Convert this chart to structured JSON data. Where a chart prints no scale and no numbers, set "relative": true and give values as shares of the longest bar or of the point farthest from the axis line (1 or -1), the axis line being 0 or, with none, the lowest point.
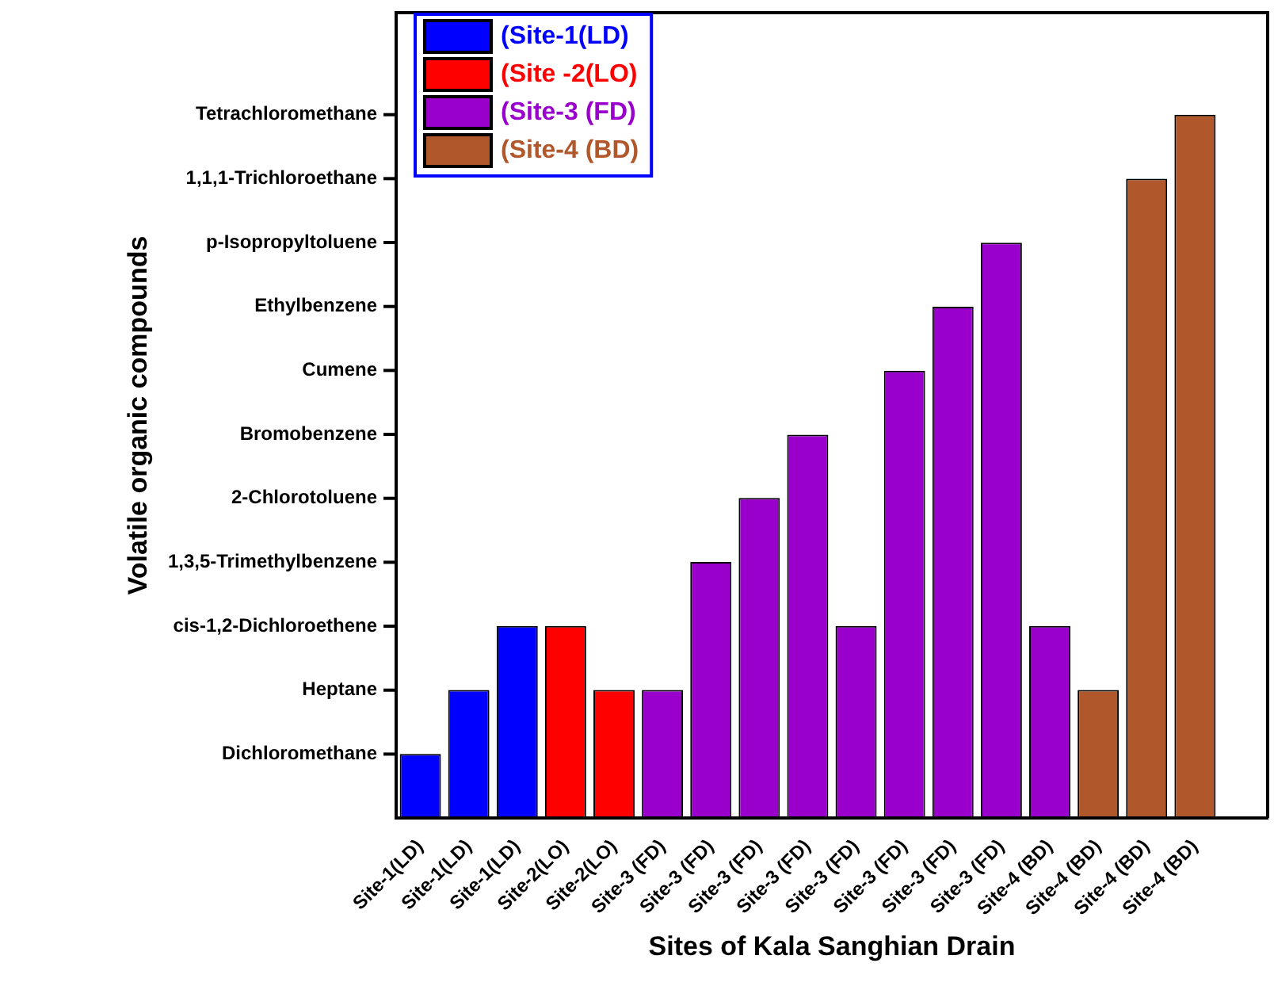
{
  "chart_data": {
    "type": "bar",
    "xlabel": "Sites of Kala Sanghian Drain",
    "relative": true,
    "categories": [
      "Site-1(LD)",
      "Site-1(LD)",
      "Site-1(LD)",
      "Site-2(LO)",
      "Site-2(LO)",
      "Site-3 (FD)",
      "Site-3 (FD)",
      "Site-3 (FD)",
      "Site-3 (FD)",
      "Site-3 (FD)",
      "Site-3 (FD)",
      "Site-3 (FD)",
      "Site-3 (FD)",
      "Site-4 (BD)",
      "Site-4 (BD)",
      "Site-4 (BD)",
      "Site-4 (BD)",
      null
    ],
    "annotations": [
      "Volatile organic compounds",
      "Tetrachloromethane",
      "1,1,1-Trichloroethane",
      "p-Isopropyltoluene",
      "Ethylbenzene",
      "Cumene",
      "Bromobenzene",
      "2-Chlorotoluene",
      "1,3,5-Trimethylbenzene",
      "cis-1,2-Dichloroethene",
      "Heptane",
      "Dichloromethane"
    ],
    "series": [
      {
        "name": "(Site-1(LD)",
        "color": "#0000ff",
        "values": [
          0.091,
          0.182,
          0.273,
          null,
          null,
          null,
          null,
          null,
          null,
          null,
          null,
          null,
          null,
          null,
          null,
          null,
          null,
          null
        ]
      },
      {
        "name": "(Site -2(LO)",
        "color": "#ff0000",
        "values": [
          null,
          null,
          null,
          0.273,
          0.182,
          null,
          null,
          null,
          null,
          null,
          null,
          null,
          null,
          null,
          null,
          null,
          null,
          null
        ]
      },
      {
        "name": "(Site-3 (FD)",
        "color": "#9900cc",
        "values": [
          null,
          null,
          null,
          null,
          null,
          0.182,
          0.364,
          0.455,
          0.545,
          0.273,
          0.636,
          0.727,
          0.818,
          0.273,
          null,
          null,
          null,
          null
        ]
      },
      {
        "name": "(Site-4 (BD)",
        "color": "#b0572b",
        "values": [
          null,
          null,
          null,
          null,
          null,
          null,
          null,
          null,
          null,
          null,
          null,
          null,
          null,
          null,
          0.182,
          0.909,
          1,
          null
        ]
      }
    ],
    "legend": "top left",
    "grid": false
  }
}
